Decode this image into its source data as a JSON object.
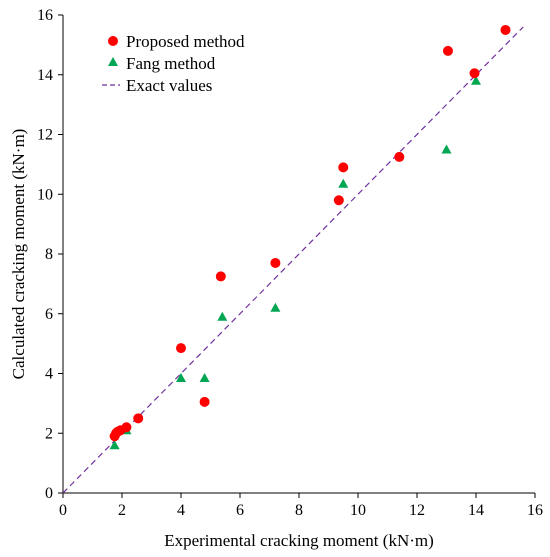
{
  "chart_data": {
    "type": "scatter",
    "title": "",
    "xlabel": "Experimental cracking moment (kN·m)",
    "ylabel": "Calculated cracking moment (kN·m)",
    "xlim": [
      0,
      16
    ],
    "ylim": [
      0,
      16
    ],
    "xticks": [
      "0",
      "2",
      "4",
      "6",
      "8",
      "10",
      "12",
      "14",
      "16"
    ],
    "yticks": [
      "0",
      "2",
      "4",
      "6",
      "8",
      "10",
      "12",
      "14",
      "16"
    ],
    "grid": false,
    "legend_position": "top-left",
    "series": [
      {
        "name": "Proposed method",
        "marker": "circle",
        "color": "#ff0000",
        "points": [
          [
            1.75,
            1.9
          ],
          [
            1.8,
            2.0
          ],
          [
            1.85,
            2.05
          ],
          [
            1.95,
            2.1
          ],
          [
            2.15,
            2.2
          ],
          [
            2.55,
            2.5
          ],
          [
            4.0,
            4.85
          ],
          [
            4.8,
            3.05
          ],
          [
            5.35,
            7.25
          ],
          [
            7.2,
            7.7
          ],
          [
            9.35,
            9.8
          ],
          [
            9.5,
            10.9
          ],
          [
            11.4,
            11.25
          ],
          [
            13.05,
            14.8
          ],
          [
            13.95,
            14.05
          ],
          [
            15.0,
            15.5
          ]
        ]
      },
      {
        "name": "Fang method",
        "marker": "triangle",
        "color": "#00a651",
        "points": [
          [
            1.75,
            1.6
          ],
          [
            2.15,
            2.1
          ],
          [
            4.0,
            3.85
          ],
          [
            4.8,
            3.85
          ],
          [
            5.4,
            5.9
          ],
          [
            7.2,
            6.2
          ],
          [
            9.5,
            10.35
          ],
          [
            13.0,
            11.5
          ],
          [
            14.0,
            13.8
          ]
        ]
      },
      {
        "name": "Exact values",
        "marker": "dashed-line",
        "color": "#7030a0",
        "points": [
          [
            0.0,
            0.0
          ],
          [
            15.6,
            15.6
          ]
        ]
      }
    ]
  }
}
